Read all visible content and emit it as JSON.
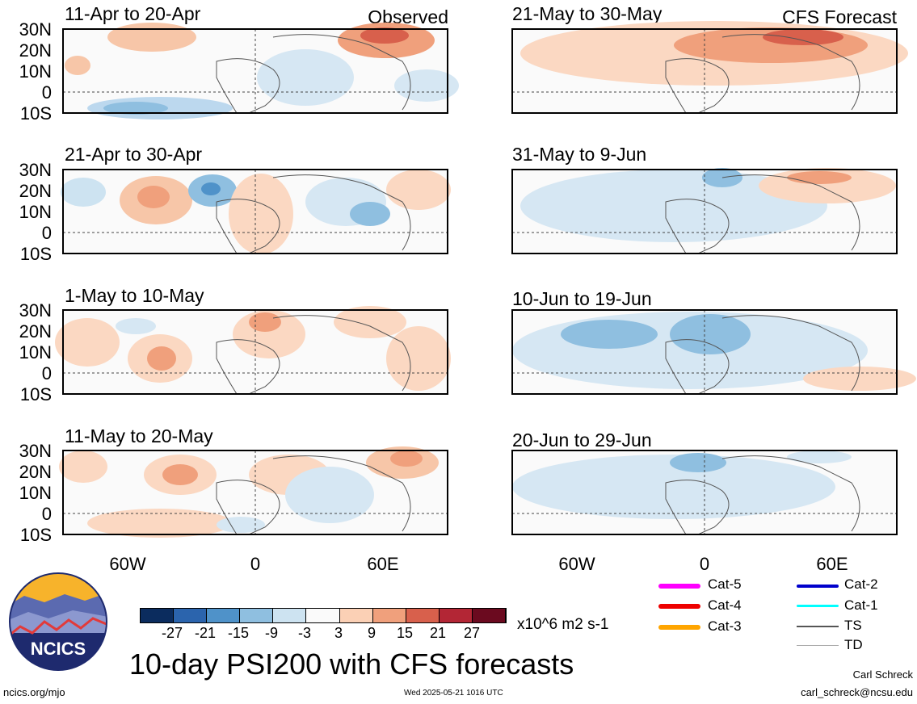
{
  "observed_label": "Observed",
  "forecast_label": "CFS Forecast",
  "lat_labels": [
    "30N",
    "20N",
    "10N",
    "0",
    "10S"
  ],
  "lon_labels": [
    "60W",
    "0",
    "60E"
  ],
  "panels": [
    {
      "title": "11-Apr to 20-Apr"
    },
    {
      "title": "21-Apr to 30-Apr"
    },
    {
      "title": "1-May to 10-May"
    },
    {
      "title": "11-May to 20-May"
    },
    {
      "title": "21-May to 30-May"
    },
    {
      "title": "31-May to 9-Jun"
    },
    {
      "title": "10-Jun to 19-Jun"
    },
    {
      "title": "20-Jun to 29-Jun"
    }
  ],
  "colorbar": {
    "labels": [
      "-27",
      "-21",
      "-15",
      "-9",
      "-3",
      "3",
      "9",
      "15",
      "21",
      "27"
    ],
    "colors": [
      "#0b2c5e",
      "#2b64ad",
      "#4f92c9",
      "#8fbfe0",
      "#cde3f1",
      "#fafafa",
      "#fbd0b5",
      "#f0a07c",
      "#d8604c",
      "#b32635",
      "#6b0a1f"
    ],
    "units": "x10^6 m2 s-1"
  },
  "main_title": "10-day PSI200 with CFS forecasts",
  "logo_text": "NCICS",
  "footer": {
    "url": "ncics.org/mjo",
    "timestamp": "Wed 2025-05-21 1016 UTC",
    "author": "Carl Schreck",
    "email": "carl_schreck@ncsu.edu"
  },
  "legend": [
    {
      "label": "Cat-5",
      "color": "#ff00ff"
    },
    {
      "label": "Cat-4",
      "color": "#ee0000"
    },
    {
      "label": "Cat-3",
      "color": "#ffa500"
    },
    {
      "label": "Cat-2",
      "color": "#0000cc"
    },
    {
      "label": "Cat-1",
      "color": "#00ffff"
    },
    {
      "label": "TS",
      "color": "#555555"
    },
    {
      "label": "TD",
      "color": "#aaaaaa"
    }
  ]
}
